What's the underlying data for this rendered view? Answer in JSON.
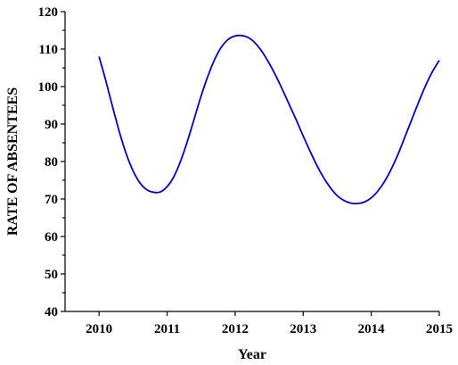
{
  "chart_data": {
    "type": "line",
    "title": "",
    "xlabel": "Year",
    "ylabel": "RATE OF ABSENTEES",
    "x_ticks": [
      "2010",
      "2011",
      "2012",
      "2013",
      "2014",
      "2015"
    ],
    "y_ticks": [
      "40",
      "50",
      "60",
      "70",
      "80",
      "90",
      "100",
      "110",
      "120"
    ],
    "xlim": [
      2009.5,
      2015
    ],
    "ylim": [
      40,
      120
    ],
    "grid": false,
    "series": [
      {
        "color": "#0000cc",
        "x": [
          2010,
          2010.1,
          2010.2,
          2010.3,
          2010.4,
          2010.5,
          2010.6,
          2010.7,
          2010.8,
          2010.9,
          2011,
          2011.1,
          2011.2,
          2011.3,
          2011.4,
          2011.5,
          2011.6,
          2011.7,
          2011.8,
          2011.9,
          2012,
          2012.1,
          2012.2,
          2012.3,
          2012.4,
          2012.5,
          2012.6,
          2012.7,
          2012.8,
          2012.9,
          2013,
          2013.1,
          2013.2,
          2013.3,
          2013.4,
          2013.5,
          2013.6,
          2013.7,
          2013.8,
          2013.9,
          2014,
          2014.1,
          2014.2,
          2014.3,
          2014.4,
          2014.5,
          2014.6,
          2014.7,
          2014.8,
          2014.9,
          2015
        ],
        "y": [
          108.0,
          101.5,
          94.5,
          87.8,
          82.0,
          77.5,
          74.3,
          72.5,
          71.8,
          71.9,
          73.3,
          76.0,
          80.2,
          85.5,
          91.5,
          97.5,
          102.8,
          107.3,
          110.6,
          112.6,
          113.5,
          113.6,
          113.0,
          111.5,
          109.2,
          106.2,
          102.8,
          99.0,
          95.0,
          91.0,
          86.8,
          82.8,
          79.0,
          75.7,
          73.0,
          70.9,
          69.6,
          68.9,
          68.8,
          69.2,
          70.3,
          72.2,
          74.8,
          78.2,
          82.2,
          86.8,
          91.4,
          96.0,
          100.3,
          104.0,
          107.0
        ]
      }
    ]
  }
}
